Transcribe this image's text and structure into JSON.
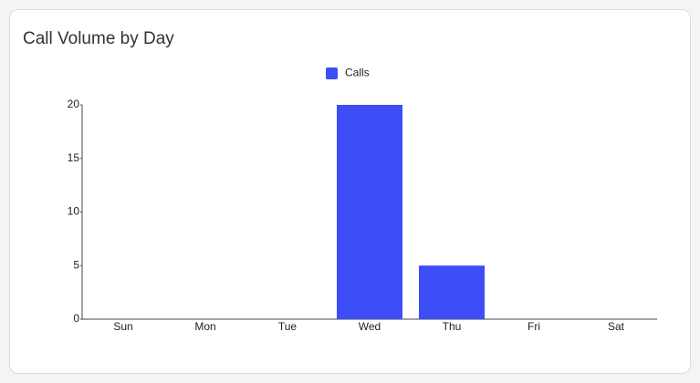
{
  "chart_data": {
    "type": "bar",
    "title": "Call Volume by Day",
    "categories": [
      "Sun",
      "Mon",
      "Tue",
      "Wed",
      "Thu",
      "Fri",
      "Sat"
    ],
    "series": [
      {
        "name": "Calls",
        "color": "#3d4ef7",
        "values": [
          0,
          0,
          0,
          20,
          5,
          0,
          0
        ]
      }
    ],
    "ylim": [
      0,
      20
    ],
    "yticks": [
      0,
      5,
      10,
      15,
      20
    ],
    "grid": false,
    "legend": "top"
  }
}
